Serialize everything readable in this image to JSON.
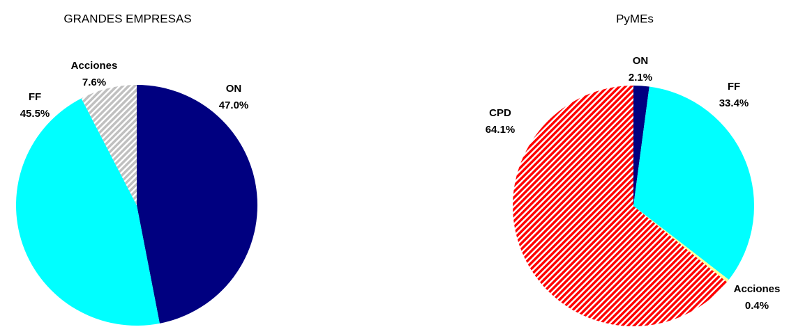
{
  "chart_data": [
    {
      "type": "pie",
      "title": "GRANDES EMPRESAS",
      "categories": [
        "ON",
        "FF",
        "Acciones"
      ],
      "values": [
        47.0,
        45.5,
        7.6
      ],
      "value_labels": [
        "47.0%",
        "45.5%",
        "7.6%"
      ],
      "colors": [
        "#000080",
        "#00ffff",
        "#c0c0c0"
      ],
      "hatched": [
        false,
        false,
        true
      ]
    },
    {
      "type": "pie",
      "title": "PyMEs",
      "categories": [
        "ON",
        "FF",
        "Acciones",
        "CPD"
      ],
      "values": [
        2.1,
        33.4,
        0.4,
        64.1
      ],
      "value_labels": [
        "2.1%",
        "33.4%",
        "0.4%",
        "64.1%"
      ],
      "colors": [
        "#000080",
        "#00ffff",
        "#ffff99",
        "#ff0000"
      ],
      "hatched": [
        false,
        false,
        false,
        true
      ]
    }
  ]
}
